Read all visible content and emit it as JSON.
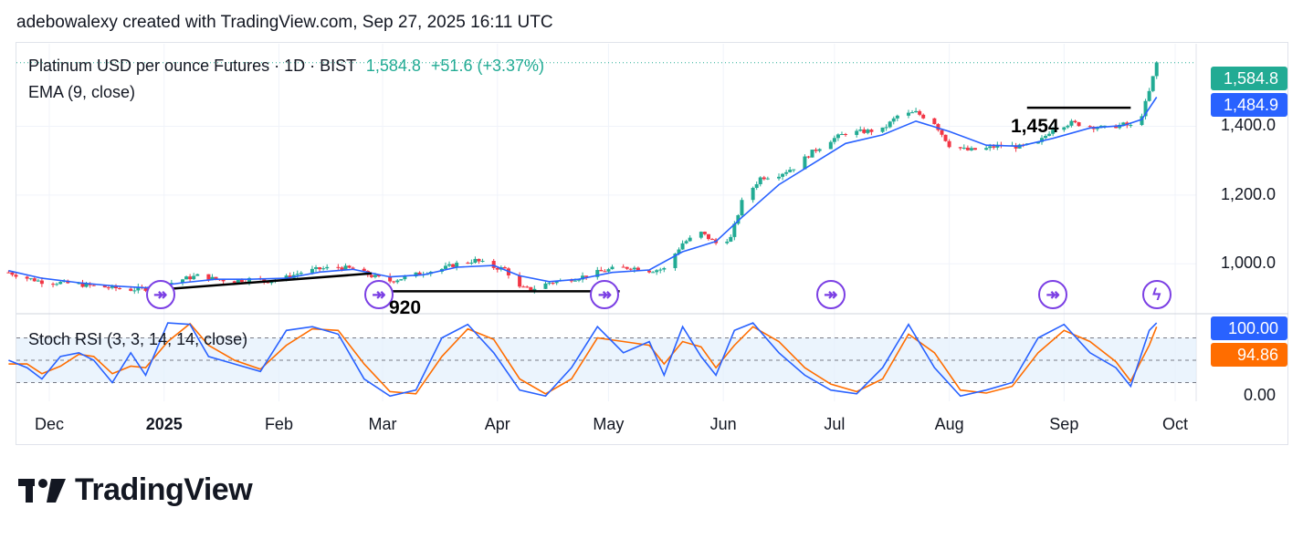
{
  "header": {
    "credit": "adebowalexy created with TradingView.com, Sep 27, 2025 16:11 UTC"
  },
  "main_legend": {
    "symbol": "Platinum USD per ounce Futures · 1D · BIST",
    "price": "1,584.8",
    "change": "+51.6 (+3.37%)",
    "indicator": "EMA (9, close)"
  },
  "stoch_legend": {
    "label": "Stoch RSI (3, 3, 14, 14, close)"
  },
  "price_badges": {
    "last": {
      "text": "1,584.8",
      "color": "#22ab94"
    },
    "ema": {
      "text": "1,484.9",
      "color": "#2962ff"
    }
  },
  "stoch_badges": {
    "k": {
      "text": "100.00",
      "color": "#2962ff"
    },
    "d": {
      "text": "94.86",
      "color": "#ff6d00"
    }
  },
  "annotations": {
    "level_high": "1,454",
    "level_low": "920"
  },
  "branding": {
    "logo_text": "TradingView"
  },
  "colors": {
    "up": "#22ab94",
    "down": "#f23645",
    "ema": "#2962ff",
    "stoch_k": "#2962ff",
    "stoch_d": "#ff6d00",
    "event_icon": "#7b3fe4"
  },
  "event_icons": [
    {
      "date": "2024-12-31",
      "icon": "split-arrow-icon"
    },
    {
      "date": "2025-02-28",
      "icon": "split-arrow-icon"
    },
    {
      "date": "2025-04-30",
      "icon": "split-arrow-icon"
    },
    {
      "date": "2025-06-30",
      "icon": "split-arrow-icon"
    },
    {
      "date": "2025-08-29",
      "icon": "split-arrow-icon"
    },
    {
      "date": "2025-09-26",
      "icon": "lightning-icon"
    }
  ],
  "chart_data": {
    "type": "candlestick",
    "x_ticks": [
      {
        "label": "Dec",
        "date": "2024-12-01",
        "bold": false
      },
      {
        "label": "2025",
        "date": "2025-01-01",
        "bold": true
      },
      {
        "label": "Feb",
        "date": "2025-02-01",
        "bold": false
      },
      {
        "label": "Mar",
        "date": "2025-03-01",
        "bold": false
      },
      {
        "label": "Apr",
        "date": "2025-04-01",
        "bold": false
      },
      {
        "label": "May",
        "date": "2025-05-01",
        "bold": false
      },
      {
        "label": "Jun",
        "date": "2025-06-01",
        "bold": false
      },
      {
        "label": "Jul",
        "date": "2025-07-01",
        "bold": false
      },
      {
        "label": "Aug",
        "date": "2025-08-01",
        "bold": false
      },
      {
        "label": "Sep",
        "date": "2025-09-01",
        "bold": false
      },
      {
        "label": "Oct",
        "date": "2025-10-01",
        "bold": false
      }
    ],
    "price_axis": {
      "ticks": [
        "1,400.0",
        "1,200.0",
        "1,000.0"
      ],
      "tick_values": [
        1400,
        1200,
        1000
      ],
      "range": [
        860,
        1640
      ]
    },
    "stoch_axis": {
      "ticks": [
        "0.00"
      ],
      "tick_values": [
        0
      ],
      "bands": [
        20,
        80
      ],
      "range": [
        -5,
        105
      ]
    },
    "close_series": [
      [
        "2024-11-20",
        975
      ],
      [
        "2024-11-25",
        958
      ],
      [
        "2024-11-29",
        948
      ],
      [
        "2024-12-04",
        945
      ],
      [
        "2024-12-09",
        940
      ],
      [
        "2024-12-13",
        935
      ],
      [
        "2024-12-18",
        930
      ],
      [
        "2024-12-23",
        925
      ],
      [
        "2024-12-27",
        928
      ],
      [
        "2024-12-31",
        935
      ],
      [
        "2025-01-06",
        955
      ],
      [
        "2025-01-10",
        965
      ],
      [
        "2025-01-15",
        955
      ],
      [
        "2025-01-20",
        950
      ],
      [
        "2025-01-24",
        955
      ],
      [
        "2025-01-29",
        950
      ],
      [
        "2025-02-03",
        960
      ],
      [
        "2025-02-07",
        975
      ],
      [
        "2025-02-12",
        985
      ],
      [
        "2025-02-17",
        990
      ],
      [
        "2025-02-21",
        985
      ],
      [
        "2025-02-26",
        965
      ],
      [
        "2025-03-03",
        950
      ],
      [
        "2025-03-07",
        960
      ],
      [
        "2025-03-12",
        975
      ],
      [
        "2025-03-17",
        985
      ],
      [
        "2025-03-21",
        1000
      ],
      [
        "2025-03-26",
        1010
      ],
      [
        "2025-03-31",
        990
      ],
      [
        "2025-04-03",
        985
      ],
      [
        "2025-04-07",
        930
      ],
      [
        "2025-04-10",
        925
      ],
      [
        "2025-04-15",
        945
      ],
      [
        "2025-04-18",
        950
      ],
      [
        "2025-04-23",
        960
      ],
      [
        "2025-04-28",
        975
      ],
      [
        "2025-05-02",
        985
      ],
      [
        "2025-05-07",
        990
      ],
      [
        "2025-05-12",
        980
      ],
      [
        "2025-05-16",
        985
      ],
      [
        "2025-05-21",
        1060
      ],
      [
        "2025-05-26",
        1090
      ],
      [
        "2025-05-30",
        1060
      ],
      [
        "2025-06-03",
        1075
      ],
      [
        "2025-06-06",
        1180
      ],
      [
        "2025-06-11",
        1250
      ],
      [
        "2025-06-16",
        1260
      ],
      [
        "2025-06-20",
        1280
      ],
      [
        "2025-06-25",
        1325
      ],
      [
        "2025-06-30",
        1360
      ],
      [
        "2025-07-04",
        1380
      ],
      [
        "2025-07-09",
        1385
      ],
      [
        "2025-07-14",
        1390
      ],
      [
        "2025-07-18",
        1430
      ],
      [
        "2025-07-23",
        1440
      ],
      [
        "2025-07-28",
        1410
      ],
      [
        "2025-08-01",
        1345
      ],
      [
        "2025-08-06",
        1330
      ],
      [
        "2025-08-11",
        1335
      ],
      [
        "2025-08-15",
        1345
      ],
      [
        "2025-08-20",
        1340
      ],
      [
        "2025-08-25",
        1350
      ],
      [
        "2025-08-29",
        1395
      ],
      [
        "2025-09-03",
        1410
      ],
      [
        "2025-09-08",
        1400
      ],
      [
        "2025-09-12",
        1395
      ],
      [
        "2025-09-17",
        1405
      ],
      [
        "2025-09-19",
        1400
      ],
      [
        "2025-09-22",
        1435
      ],
      [
        "2025-09-24",
        1500
      ],
      [
        "2025-09-26",
        1584.8
      ]
    ],
    "ema_series": [
      [
        "2024-11-20",
        980
      ],
      [
        "2024-11-29",
        958
      ],
      [
        "2024-12-09",
        945
      ],
      [
        "2024-12-18",
        936
      ],
      [
        "2024-12-27",
        930
      ],
      [
        "2025-01-06",
        945
      ],
      [
        "2025-01-15",
        955
      ],
      [
        "2025-01-24",
        955
      ],
      [
        "2025-02-03",
        958
      ],
      [
        "2025-02-12",
        976
      ],
      [
        "2025-02-21",
        984
      ],
      [
        "2025-03-03",
        962
      ],
      [
        "2025-03-12",
        968
      ],
      [
        "2025-03-21",
        990
      ],
      [
        "2025-03-31",
        995
      ],
      [
        "2025-04-07",
        965
      ],
      [
        "2025-04-15",
        948
      ],
      [
        "2025-04-23",
        955
      ],
      [
        "2025-05-02",
        975
      ],
      [
        "2025-05-12",
        982
      ],
      [
        "2025-05-21",
        1035
      ],
      [
        "2025-05-30",
        1065
      ],
      [
        "2025-06-06",
        1135
      ],
      [
        "2025-06-16",
        1230
      ],
      [
        "2025-06-25",
        1290
      ],
      [
        "2025-07-04",
        1350
      ],
      [
        "2025-07-14",
        1375
      ],
      [
        "2025-07-23",
        1415
      ],
      [
        "2025-08-01",
        1385
      ],
      [
        "2025-08-11",
        1345
      ],
      [
        "2025-08-20",
        1342
      ],
      [
        "2025-08-29",
        1365
      ],
      [
        "2025-09-08",
        1395
      ],
      [
        "2025-09-17",
        1402
      ],
      [
        "2025-09-22",
        1420
      ],
      [
        "2025-09-26",
        1484.9
      ]
    ],
    "stoch_k": [
      [
        "2024-11-20",
        50
      ],
      [
        "2024-11-25",
        40
      ],
      [
        "2024-11-29",
        25
      ],
      [
        "2024-12-04",
        55
      ],
      [
        "2024-12-09",
        60
      ],
      [
        "2024-12-13",
        50
      ],
      [
        "2024-12-18",
        20
      ],
      [
        "2024-12-23",
        60
      ],
      [
        "2024-12-27",
        30
      ],
      [
        "2025-01-02",
        100
      ],
      [
        "2025-01-08",
        98
      ],
      [
        "2025-01-13",
        55
      ],
      [
        "2025-01-20",
        45
      ],
      [
        "2025-01-27",
        35
      ],
      [
        "2025-02-03",
        90
      ],
      [
        "2025-02-10",
        95
      ],
      [
        "2025-02-17",
        85
      ],
      [
        "2025-02-24",
        25
      ],
      [
        "2025-03-03",
        2
      ],
      [
        "2025-03-10",
        10
      ],
      [
        "2025-03-17",
        80
      ],
      [
        "2025-03-24",
        98
      ],
      [
        "2025-03-31",
        60
      ],
      [
        "2025-04-07",
        10
      ],
      [
        "2025-04-14",
        2
      ],
      [
        "2025-04-21",
        40
      ],
      [
        "2025-04-28",
        95
      ],
      [
        "2025-05-05",
        60
      ],
      [
        "2025-05-12",
        75
      ],
      [
        "2025-05-16",
        30
      ],
      [
        "2025-05-21",
        95
      ],
      [
        "2025-05-26",
        55
      ],
      [
        "2025-05-30",
        30
      ],
      [
        "2025-06-04",
        90
      ],
      [
        "2025-06-09",
        100
      ],
      [
        "2025-06-16",
        60
      ],
      [
        "2025-06-23",
        30
      ],
      [
        "2025-06-30",
        10
      ],
      [
        "2025-07-07",
        5
      ],
      [
        "2025-07-14",
        40
      ],
      [
        "2025-07-21",
        98
      ],
      [
        "2025-07-28",
        40
      ],
      [
        "2025-08-04",
        2
      ],
      [
        "2025-08-11",
        10
      ],
      [
        "2025-08-18",
        20
      ],
      [
        "2025-08-25",
        80
      ],
      [
        "2025-09-01",
        98
      ],
      [
        "2025-09-08",
        60
      ],
      [
        "2025-09-15",
        40
      ],
      [
        "2025-09-19",
        15
      ],
      [
        "2025-09-24",
        90
      ],
      [
        "2025-09-26",
        100
      ]
    ],
    "stoch_d": [
      [
        "2024-11-20",
        45
      ],
      [
        "2024-11-25",
        45
      ],
      [
        "2024-11-29",
        32
      ],
      [
        "2024-12-04",
        42
      ],
      [
        "2024-12-09",
        58
      ],
      [
        "2024-12-13",
        55
      ],
      [
        "2024-12-18",
        32
      ],
      [
        "2024-12-23",
        42
      ],
      [
        "2024-12-27",
        40
      ],
      [
        "2025-01-02",
        75
      ],
      [
        "2025-01-08",
        99
      ],
      [
        "2025-01-13",
        70
      ],
      [
        "2025-01-20",
        50
      ],
      [
        "2025-01-27",
        38
      ],
      [
        "2025-02-03",
        70
      ],
      [
        "2025-02-10",
        92
      ],
      [
        "2025-02-17",
        90
      ],
      [
        "2025-02-24",
        45
      ],
      [
        "2025-03-03",
        8
      ],
      [
        "2025-03-10",
        5
      ],
      [
        "2025-03-17",
        55
      ],
      [
        "2025-03-24",
        92
      ],
      [
        "2025-03-31",
        78
      ],
      [
        "2025-04-07",
        25
      ],
      [
        "2025-04-14",
        5
      ],
      [
        "2025-04-21",
        25
      ],
      [
        "2025-04-28",
        80
      ],
      [
        "2025-05-05",
        75
      ],
      [
        "2025-05-12",
        70
      ],
      [
        "2025-05-16",
        45
      ],
      [
        "2025-05-21",
        75
      ],
      [
        "2025-05-26",
        68
      ],
      [
        "2025-05-30",
        40
      ],
      [
        "2025-06-04",
        70
      ],
      [
        "2025-06-09",
        95
      ],
      [
        "2025-06-16",
        75
      ],
      [
        "2025-06-23",
        40
      ],
      [
        "2025-06-30",
        18
      ],
      [
        "2025-07-07",
        8
      ],
      [
        "2025-07-14",
        25
      ],
      [
        "2025-07-21",
        85
      ],
      [
        "2025-07-28",
        60
      ],
      [
        "2025-08-04",
        10
      ],
      [
        "2025-08-11",
        6
      ],
      [
        "2025-08-18",
        15
      ],
      [
        "2025-08-25",
        60
      ],
      [
        "2025-09-01",
        90
      ],
      [
        "2025-09-08",
        75
      ],
      [
        "2025-09-15",
        48
      ],
      [
        "2025-09-19",
        22
      ],
      [
        "2025-09-24",
        70
      ],
      [
        "2025-09-26",
        94.86
      ]
    ],
    "trendlines": [
      {
        "from": [
          "2024-12-31",
          925
        ],
        "to": [
          "2025-02-26",
          972
        ]
      },
      {
        "from": [
          "2025-02-27",
          920
        ],
        "to": [
          "2025-05-04",
          920
        ]
      },
      {
        "from": [
          "2025-08-22",
          1454
        ],
        "to": [
          "2025-09-19",
          1454
        ]
      }
    ]
  }
}
